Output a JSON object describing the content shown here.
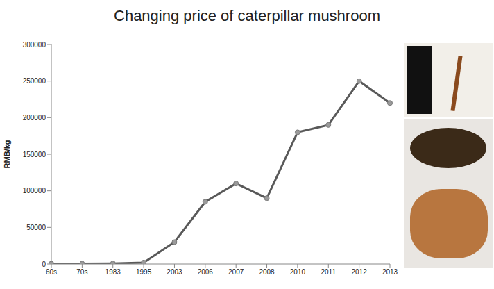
{
  "chart_data": {
    "type": "line",
    "title": "Changing price of caterpillar mushroom",
    "y_label": "RMB/kg",
    "categories": [
      "60s",
      "70s",
      "1983",
      "1995",
      "2003",
      "2006",
      "2007",
      "2008",
      "2010",
      "2011",
      "2012",
      "2013"
    ],
    "values": [
      500,
      500,
      800,
      2000,
      30000,
      85000,
      110000,
      90000,
      180000,
      190000,
      250000,
      220000
    ],
    "color": "#595959",
    "marker": "circle",
    "line_style": "solid",
    "ylim": [
      0,
      300000
    ],
    "yticks": [
      0,
      50000,
      100000,
      150000,
      200000,
      250000,
      300000
    ],
    "grid": false
  }
}
